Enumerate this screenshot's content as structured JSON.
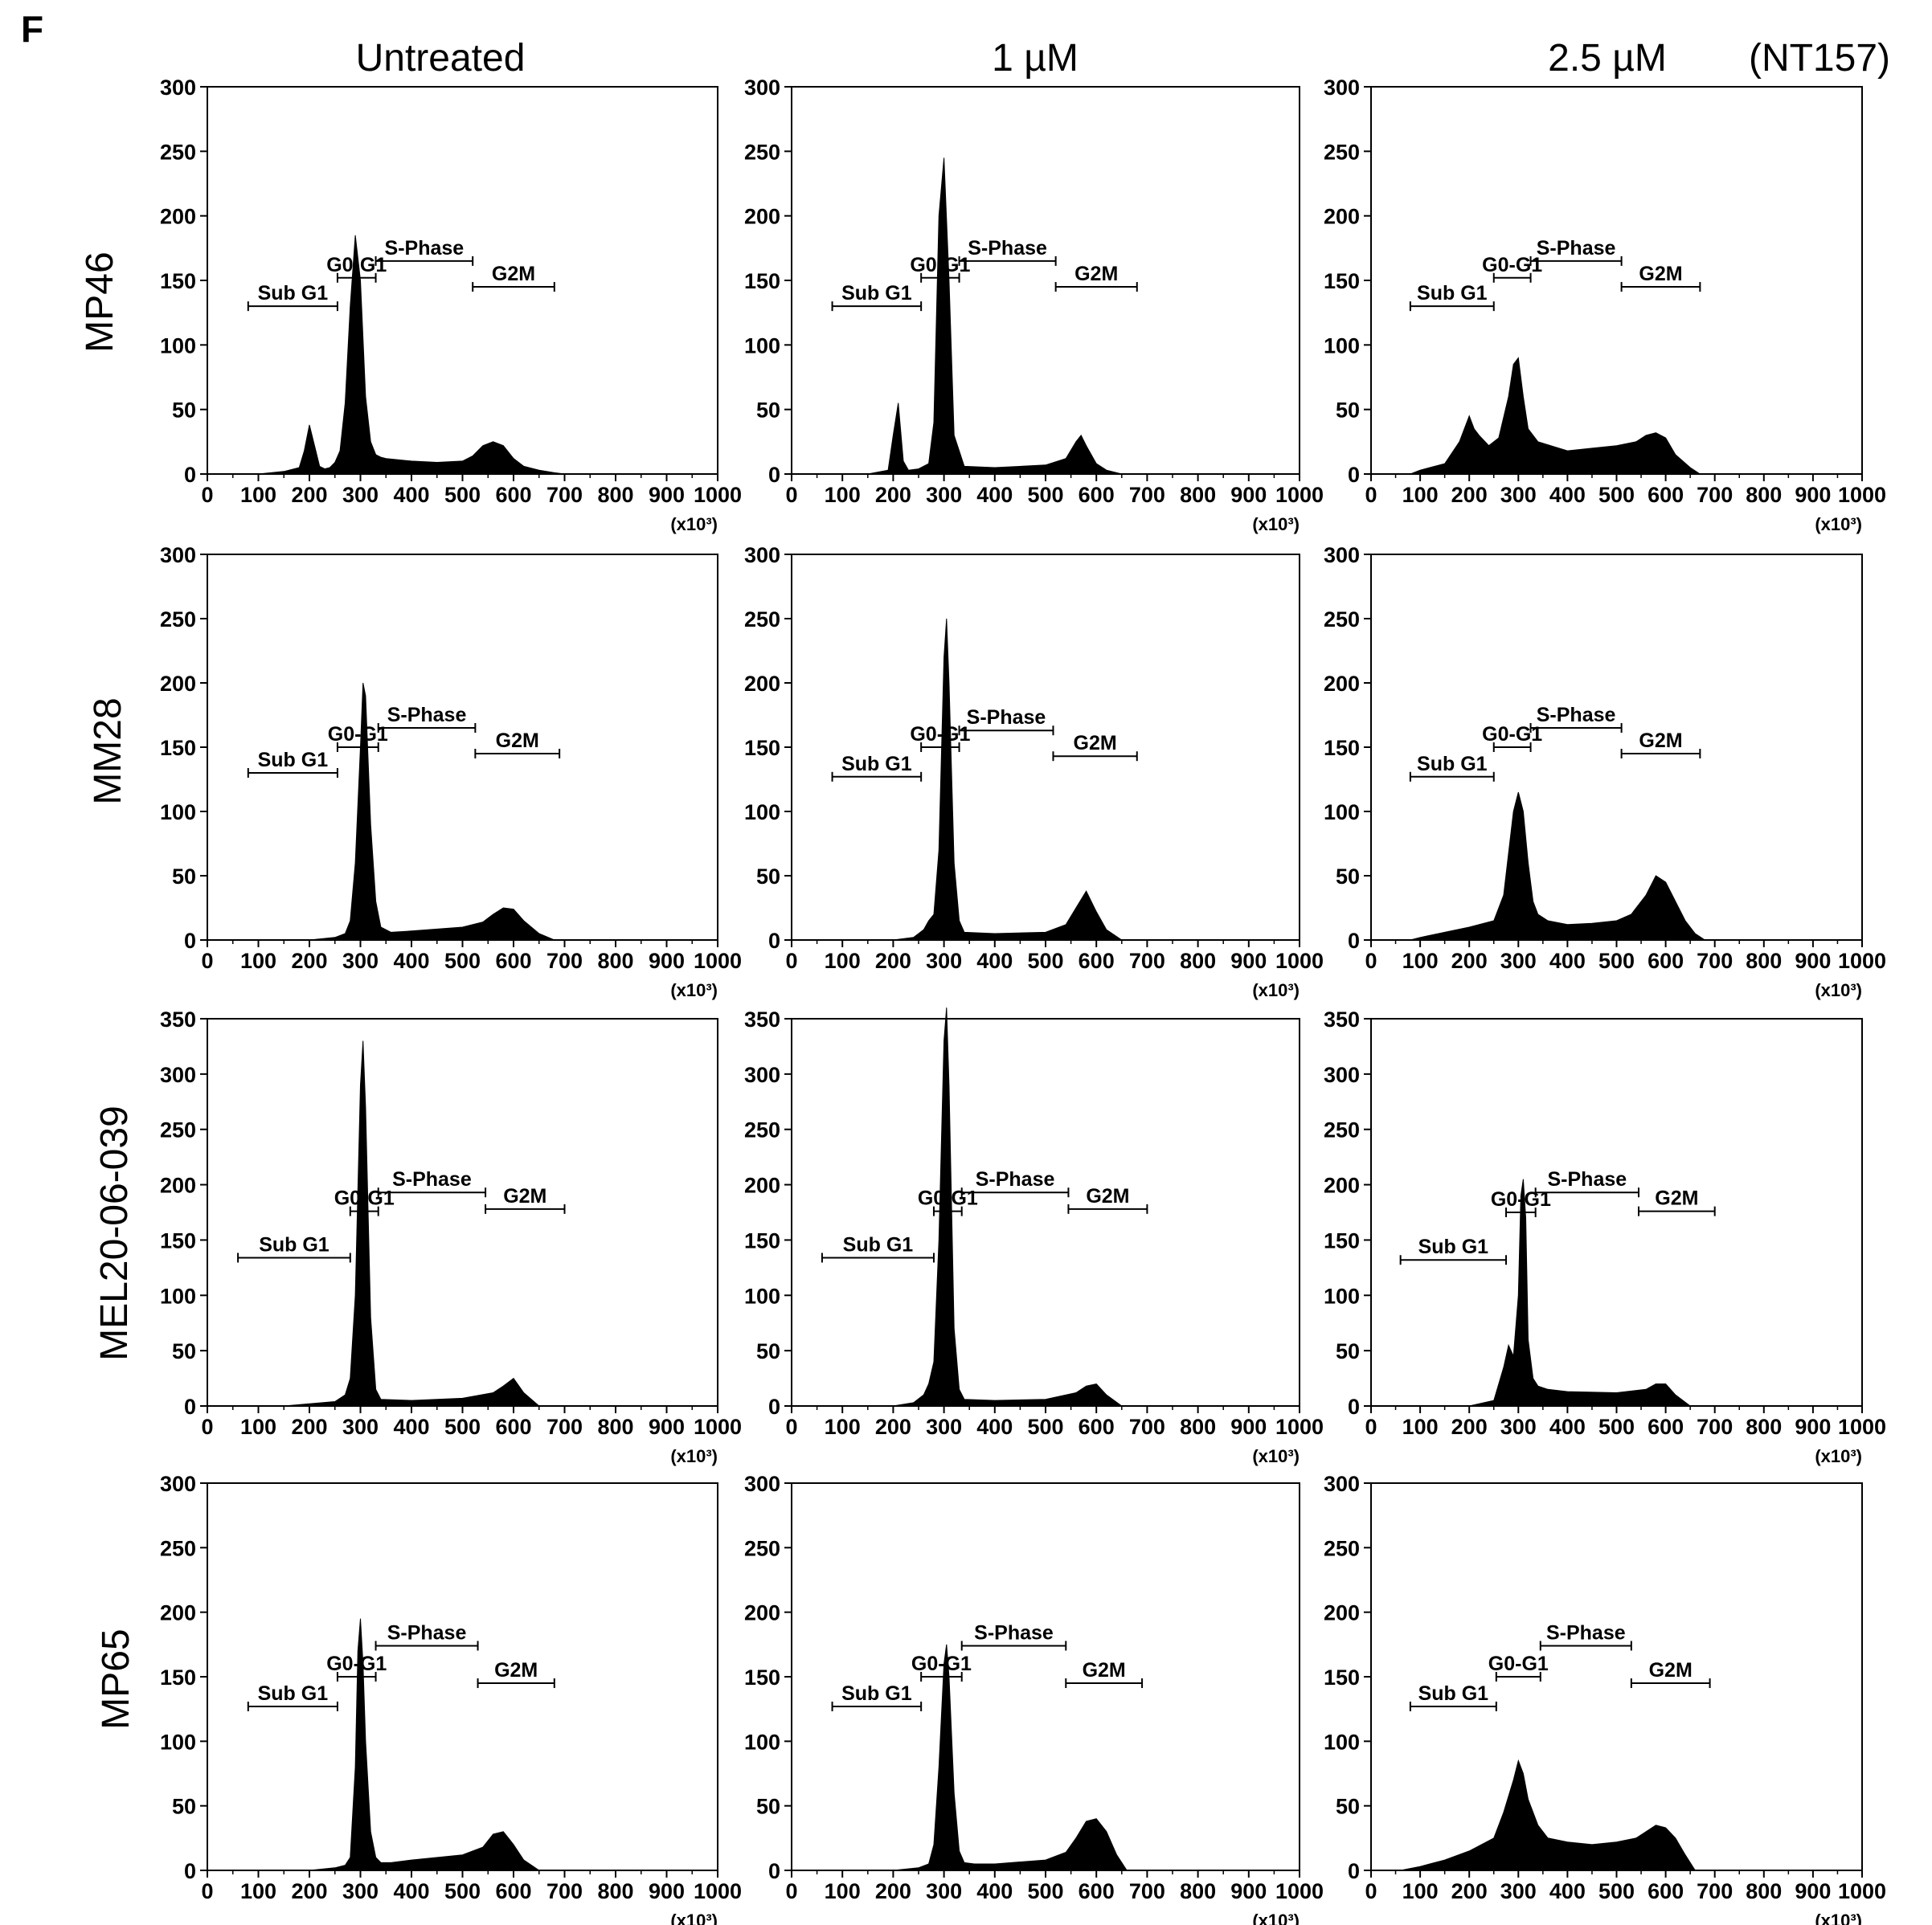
{
  "panel_letter": "F",
  "column_headers": [
    "Untreated",
    "1 µM",
    "2.5 µM"
  ],
  "compound_label": "(NT157)",
  "row_headers": [
    "MP46",
    "MM28",
    "MEL20-06-039",
    "MP65"
  ],
  "x_unit_label": "(x10³)",
  "colors": {
    "fill": "#000000",
    "frame": "#000000",
    "background": "#ffffff"
  },
  "chart_data": [
    {
      "type": "area",
      "row": "MP46",
      "column": "Untreated",
      "xlim": [
        0,
        1000
      ],
      "ylim": [
        0,
        300
      ],
      "xticks": [
        0,
        100,
        200,
        300,
        400,
        500,
        600,
        700,
        800,
        900,
        1000
      ],
      "yticks": [
        0,
        50,
        100,
        150,
        200,
        250,
        300
      ],
      "x": [
        0,
        100,
        150,
        180,
        190,
        200,
        210,
        220,
        230,
        240,
        250,
        260,
        270,
        280,
        290,
        300,
        310,
        320,
        330,
        340,
        350,
        400,
        450,
        500,
        520,
        540,
        560,
        580,
        600,
        620,
        650,
        680,
        700,
        1000
      ],
      "y": [
        0,
        0,
        2,
        5,
        18,
        38,
        22,
        6,
        4,
        5,
        9,
        18,
        55,
        130,
        185,
        150,
        60,
        25,
        15,
        13,
        12,
        10,
        9,
        10,
        14,
        22,
        25,
        22,
        12,
        6,
        3,
        1,
        0,
        0
      ],
      "gates": [
        {
          "label": "Sub G1",
          "from": 80,
          "to": 255,
          "y": 130
        },
        {
          "label": "G0-G1",
          "from": 255,
          "to": 330,
          "y": 152
        },
        {
          "label": "S-Phase",
          "from": 330,
          "to": 520,
          "y": 165
        },
        {
          "label": "G2M",
          "from": 520,
          "to": 680,
          "y": 145
        }
      ]
    },
    {
      "type": "area",
      "row": "MP46",
      "column": "1 µM",
      "xlim": [
        0,
        1000
      ],
      "ylim": [
        0,
        300
      ],
      "xticks": [
        0,
        100,
        200,
        300,
        400,
        500,
        600,
        700,
        800,
        900,
        1000
      ],
      "yticks": [
        0,
        50,
        100,
        150,
        200,
        250,
        300
      ],
      "x": [
        0,
        150,
        190,
        200,
        210,
        220,
        230,
        250,
        270,
        280,
        290,
        300,
        310,
        320,
        340,
        400,
        500,
        540,
        560,
        570,
        580,
        600,
        620,
        650,
        1000
      ],
      "y": [
        0,
        0,
        3,
        30,
        55,
        10,
        3,
        4,
        8,
        40,
        200,
        245,
        150,
        30,
        6,
        5,
        7,
        12,
        25,
        30,
        22,
        8,
        3,
        0,
        0
      ],
      "gates": [
        {
          "label": "Sub G1",
          "from": 80,
          "to": 255,
          "y": 130
        },
        {
          "label": "G0-G1",
          "from": 255,
          "to": 330,
          "y": 152
        },
        {
          "label": "S-Phase",
          "from": 330,
          "to": 520,
          "y": 165
        },
        {
          "label": "G2M",
          "from": 520,
          "to": 680,
          "y": 145
        }
      ]
    },
    {
      "type": "area",
      "row": "MP46",
      "column": "2.5 µM",
      "xlim": [
        0,
        1000
      ],
      "ylim": [
        0,
        300
      ],
      "xticks": [
        0,
        100,
        200,
        300,
        400,
        500,
        600,
        700,
        800,
        900,
        1000
      ],
      "yticks": [
        0,
        50,
        100,
        150,
        200,
        250,
        300
      ],
      "x": [
        0,
        80,
        100,
        150,
        180,
        200,
        210,
        220,
        240,
        260,
        280,
        290,
        300,
        310,
        320,
        340,
        400,
        450,
        500,
        540,
        560,
        580,
        600,
        620,
        650,
        670,
        1000
      ],
      "y": [
        0,
        0,
        3,
        8,
        25,
        45,
        35,
        30,
        22,
        28,
        60,
        85,
        90,
        60,
        35,
        25,
        18,
        20,
        22,
        25,
        30,
        32,
        28,
        15,
        5,
        0,
        0
      ],
      "gates": [
        {
          "label": "Sub G1",
          "from": 80,
          "to": 250,
          "y": 130
        },
        {
          "label": "G0-G1",
          "from": 250,
          "to": 325,
          "y": 152
        },
        {
          "label": "S-Phase",
          "from": 325,
          "to": 510,
          "y": 165
        },
        {
          "label": "G2M",
          "from": 510,
          "to": 670,
          "y": 145
        }
      ]
    },
    {
      "type": "area",
      "row": "MM28",
      "column": "Untreated",
      "xlim": [
        0,
        1000
      ],
      "ylim": [
        0,
        300
      ],
      "xticks": [
        0,
        100,
        200,
        300,
        400,
        500,
        600,
        700,
        800,
        900,
        1000
      ],
      "yticks": [
        0,
        50,
        100,
        150,
        200,
        250,
        300
      ],
      "x": [
        0,
        200,
        250,
        270,
        280,
        290,
        300,
        305,
        310,
        320,
        330,
        340,
        360,
        400,
        500,
        540,
        560,
        580,
        600,
        620,
        650,
        680,
        1000
      ],
      "y": [
        0,
        0,
        2,
        5,
        15,
        60,
        150,
        200,
        190,
        90,
        30,
        10,
        6,
        7,
        10,
        14,
        20,
        25,
        24,
        15,
        5,
        0,
        0
      ],
      "gates": [
        {
          "label": "Sub G1",
          "from": 80,
          "to": 255,
          "y": 130
        },
        {
          "label": "G0-G1",
          "from": 255,
          "to": 335,
          "y": 150
        },
        {
          "label": "S-Phase",
          "from": 335,
          "to": 525,
          "y": 165
        },
        {
          "label": "G2M",
          "from": 525,
          "to": 690,
          "y": 145
        }
      ]
    },
    {
      "type": "area",
      "row": "MM28",
      "column": "1 µM",
      "xlim": [
        0,
        1000
      ],
      "ylim": [
        0,
        300
      ],
      "xticks": [
        0,
        100,
        200,
        300,
        400,
        500,
        600,
        700,
        800,
        900,
        1000
      ],
      "yticks": [
        0,
        50,
        100,
        150,
        200,
        250,
        300
      ],
      "x": [
        0,
        200,
        240,
        260,
        270,
        280,
        290,
        300,
        305,
        310,
        320,
        330,
        340,
        400,
        500,
        540,
        560,
        580,
        600,
        620,
        650,
        1000
      ],
      "y": [
        0,
        0,
        2,
        8,
        15,
        20,
        70,
        220,
        250,
        200,
        60,
        15,
        6,
        5,
        6,
        12,
        25,
        38,
        22,
        8,
        0,
        0
      ],
      "gates": [
        {
          "label": "Sub G1",
          "from": 80,
          "to": 255,
          "y": 127
        },
        {
          "label": "G0-G1",
          "from": 255,
          "to": 330,
          "y": 150
        },
        {
          "label": "S-Phase",
          "from": 330,
          "to": 515,
          "y": 163
        },
        {
          "label": "G2M",
          "from": 515,
          "to": 680,
          "y": 143
        }
      ]
    },
    {
      "type": "area",
      "row": "MM28",
      "column": "2.5 µM",
      "xlim": [
        0,
        1000
      ],
      "ylim": [
        0,
        300
      ],
      "xticks": [
        0,
        100,
        200,
        300,
        400,
        500,
        600,
        700,
        800,
        900,
        1000
      ],
      "yticks": [
        0,
        50,
        100,
        150,
        200,
        250,
        300
      ],
      "x": [
        0,
        80,
        100,
        150,
        200,
        250,
        270,
        290,
        300,
        310,
        320,
        330,
        340,
        360,
        400,
        450,
        500,
        530,
        560,
        580,
        600,
        620,
        640,
        660,
        680,
        1000
      ],
      "y": [
        0,
        0,
        2,
        6,
        10,
        15,
        35,
        100,
        115,
        100,
        60,
        30,
        20,
        15,
        12,
        13,
        15,
        20,
        35,
        50,
        45,
        30,
        15,
        5,
        0,
        0
      ],
      "gates": [
        {
          "label": "Sub G1",
          "from": 80,
          "to": 250,
          "y": 127
        },
        {
          "label": "G0-G1",
          "from": 250,
          "to": 325,
          "y": 150
        },
        {
          "label": "S-Phase",
          "from": 325,
          "to": 510,
          "y": 165
        },
        {
          "label": "G2M",
          "from": 510,
          "to": 670,
          "y": 145
        }
      ]
    },
    {
      "type": "area",
      "row": "MEL20-06-039",
      "column": "Untreated",
      "xlim": [
        0,
        1000
      ],
      "ylim": [
        0,
        350
      ],
      "xticks": [
        0,
        100,
        200,
        300,
        400,
        500,
        600,
        700,
        800,
        900,
        1000
      ],
      "yticks": [
        0,
        50,
        100,
        150,
        200,
        250,
        300,
        350
      ],
      "x": [
        0,
        150,
        200,
        250,
        270,
        280,
        290,
        300,
        305,
        310,
        320,
        330,
        340,
        400,
        500,
        560,
        580,
        600,
        620,
        650,
        1000
      ],
      "y": [
        0,
        0,
        2,
        4,
        10,
        25,
        100,
        290,
        330,
        270,
        80,
        15,
        6,
        5,
        7,
        12,
        18,
        25,
        12,
        0,
        0
      ],
      "gates": [
        {
          "label": "Sub G1",
          "from": 60,
          "to": 280,
          "y": 134
        },
        {
          "label": "G0-G1",
          "from": 280,
          "to": 335,
          "y": 176
        },
        {
          "label": "S-Phase",
          "from": 335,
          "to": 545,
          "y": 193
        },
        {
          "label": "G2M",
          "from": 545,
          "to": 700,
          "y": 178
        }
      ]
    },
    {
      "type": "area",
      "row": "MEL20-06-039",
      "column": "1 µM",
      "xlim": [
        0,
        1000
      ],
      "ylim": [
        0,
        350
      ],
      "xticks": [
        0,
        100,
        200,
        300,
        400,
        500,
        600,
        700,
        800,
        900,
        1000
      ],
      "yticks": [
        0,
        50,
        100,
        150,
        200,
        250,
        300,
        350
      ],
      "x": [
        0,
        200,
        240,
        260,
        270,
        280,
        290,
        300,
        305,
        310,
        320,
        330,
        340,
        400,
        500,
        560,
        580,
        600,
        620,
        650,
        1000
      ],
      "y": [
        0,
        0,
        3,
        10,
        20,
        40,
        150,
        330,
        360,
        290,
        70,
        15,
        6,
        5,
        6,
        12,
        18,
        20,
        10,
        0,
        0
      ],
      "gates": [
        {
          "label": "Sub G1",
          "from": 60,
          "to": 280,
          "y": 134
        },
        {
          "label": "G0-G1",
          "from": 280,
          "to": 335,
          "y": 176
        },
        {
          "label": "S-Phase",
          "from": 335,
          "to": 545,
          "y": 193
        },
        {
          "label": "G2M",
          "from": 545,
          "to": 700,
          "y": 178
        }
      ]
    },
    {
      "type": "area",
      "row": "MEL20-06-039",
      "column": "2.5 µM",
      "xlim": [
        0,
        1000
      ],
      "ylim": [
        0,
        350
      ],
      "xticks": [
        0,
        100,
        200,
        300,
        400,
        500,
        600,
        700,
        800,
        900,
        1000
      ],
      "yticks": [
        0,
        50,
        100,
        150,
        200,
        250,
        300,
        350
      ],
      "x": [
        0,
        200,
        250,
        270,
        280,
        290,
        300,
        305,
        310,
        315,
        320,
        330,
        340,
        360,
        400,
        500,
        560,
        580,
        600,
        620,
        650,
        1000
      ],
      "y": [
        0,
        0,
        5,
        35,
        55,
        45,
        100,
        190,
        205,
        170,
        60,
        25,
        18,
        15,
        13,
        12,
        15,
        20,
        20,
        10,
        0,
        0
      ],
      "gates": [
        {
          "label": "Sub G1",
          "from": 60,
          "to": 275,
          "y": 132
        },
        {
          "label": "G0-G1",
          "from": 275,
          "to": 335,
          "y": 175
        },
        {
          "label": "S-Phase",
          "from": 335,
          "to": 545,
          "y": 193
        },
        {
          "label": "G2M",
          "from": 545,
          "to": 700,
          "y": 176
        }
      ]
    },
    {
      "type": "area",
      "row": "MP65",
      "column": "Untreated",
      "xlim": [
        0,
        1000
      ],
      "ylim": [
        0,
        300
      ],
      "xticks": [
        0,
        100,
        200,
        300,
        400,
        500,
        600,
        700,
        800,
        900,
        1000
      ],
      "yticks": [
        0,
        50,
        100,
        150,
        200,
        250,
        300
      ],
      "x": [
        0,
        200,
        250,
        270,
        280,
        290,
        295,
        300,
        305,
        310,
        320,
        330,
        340,
        360,
        400,
        500,
        540,
        560,
        580,
        600,
        620,
        650,
        1000
      ],
      "y": [
        0,
        0,
        2,
        4,
        10,
        80,
        170,
        195,
        160,
        100,
        30,
        10,
        6,
        6,
        8,
        12,
        18,
        28,
        30,
        20,
        8,
        0,
        0
      ],
      "gates": [
        {
          "label": "Sub G1",
          "from": 80,
          "to": 255,
          "y": 127
        },
        {
          "label": "G0-G1",
          "from": 255,
          "to": 330,
          "y": 150
        },
        {
          "label": "S-Phase",
          "from": 330,
          "to": 530,
          "y": 174
        },
        {
          "label": "G2M",
          "from": 530,
          "to": 680,
          "y": 145
        }
      ]
    },
    {
      "type": "area",
      "row": "MP65",
      "column": "1 µM",
      "xlim": [
        0,
        1000
      ],
      "ylim": [
        0,
        300
      ],
      "xticks": [
        0,
        100,
        200,
        300,
        400,
        500,
        600,
        700,
        800,
        900,
        1000
      ],
      "yticks": [
        0,
        50,
        100,
        150,
        200,
        250,
        300
      ],
      "x": [
        0,
        200,
        250,
        270,
        280,
        290,
        300,
        305,
        310,
        320,
        330,
        340,
        360,
        400,
        500,
        540,
        560,
        580,
        600,
        620,
        640,
        660,
        1000
      ],
      "y": [
        0,
        0,
        2,
        5,
        20,
        80,
        160,
        175,
        150,
        60,
        15,
        6,
        5,
        5,
        8,
        14,
        25,
        38,
        40,
        30,
        12,
        0,
        0
      ],
      "gates": [
        {
          "label": "Sub G1",
          "from": 80,
          "to": 255,
          "y": 127
        },
        {
          "label": "G0-G1",
          "from": 255,
          "to": 335,
          "y": 150
        },
        {
          "label": "S-Phase",
          "from": 335,
          "to": 540,
          "y": 174
        },
        {
          "label": "G2M",
          "from": 540,
          "to": 690,
          "y": 145
        }
      ]
    },
    {
      "type": "area",
      "row": "MP65",
      "column": "2.5 µM",
      "xlim": [
        0,
        1000
      ],
      "ylim": [
        0,
        300
      ],
      "xticks": [
        0,
        100,
        200,
        300,
        400,
        500,
        600,
        700,
        800,
        900,
        1000
      ],
      "yticks": [
        0,
        50,
        100,
        150,
        200,
        250,
        300
      ],
      "x": [
        0,
        60,
        100,
        150,
        200,
        250,
        270,
        290,
        300,
        310,
        320,
        340,
        360,
        400,
        450,
        500,
        540,
        560,
        580,
        600,
        620,
        640,
        660,
        1000
      ],
      "y": [
        0,
        0,
        3,
        8,
        15,
        25,
        45,
        70,
        85,
        75,
        55,
        35,
        25,
        22,
        20,
        22,
        25,
        30,
        35,
        33,
        25,
        12,
        0,
        0
      ],
      "gates": [
        {
          "label": "Sub G1",
          "from": 80,
          "to": 255,
          "y": 127
        },
        {
          "label": "G0-G1",
          "from": 255,
          "to": 345,
          "y": 150
        },
        {
          "label": "S-Phase",
          "from": 345,
          "to": 530,
          "y": 174
        },
        {
          "label": "G2M",
          "from": 530,
          "to": 690,
          "y": 145
        }
      ]
    }
  ]
}
